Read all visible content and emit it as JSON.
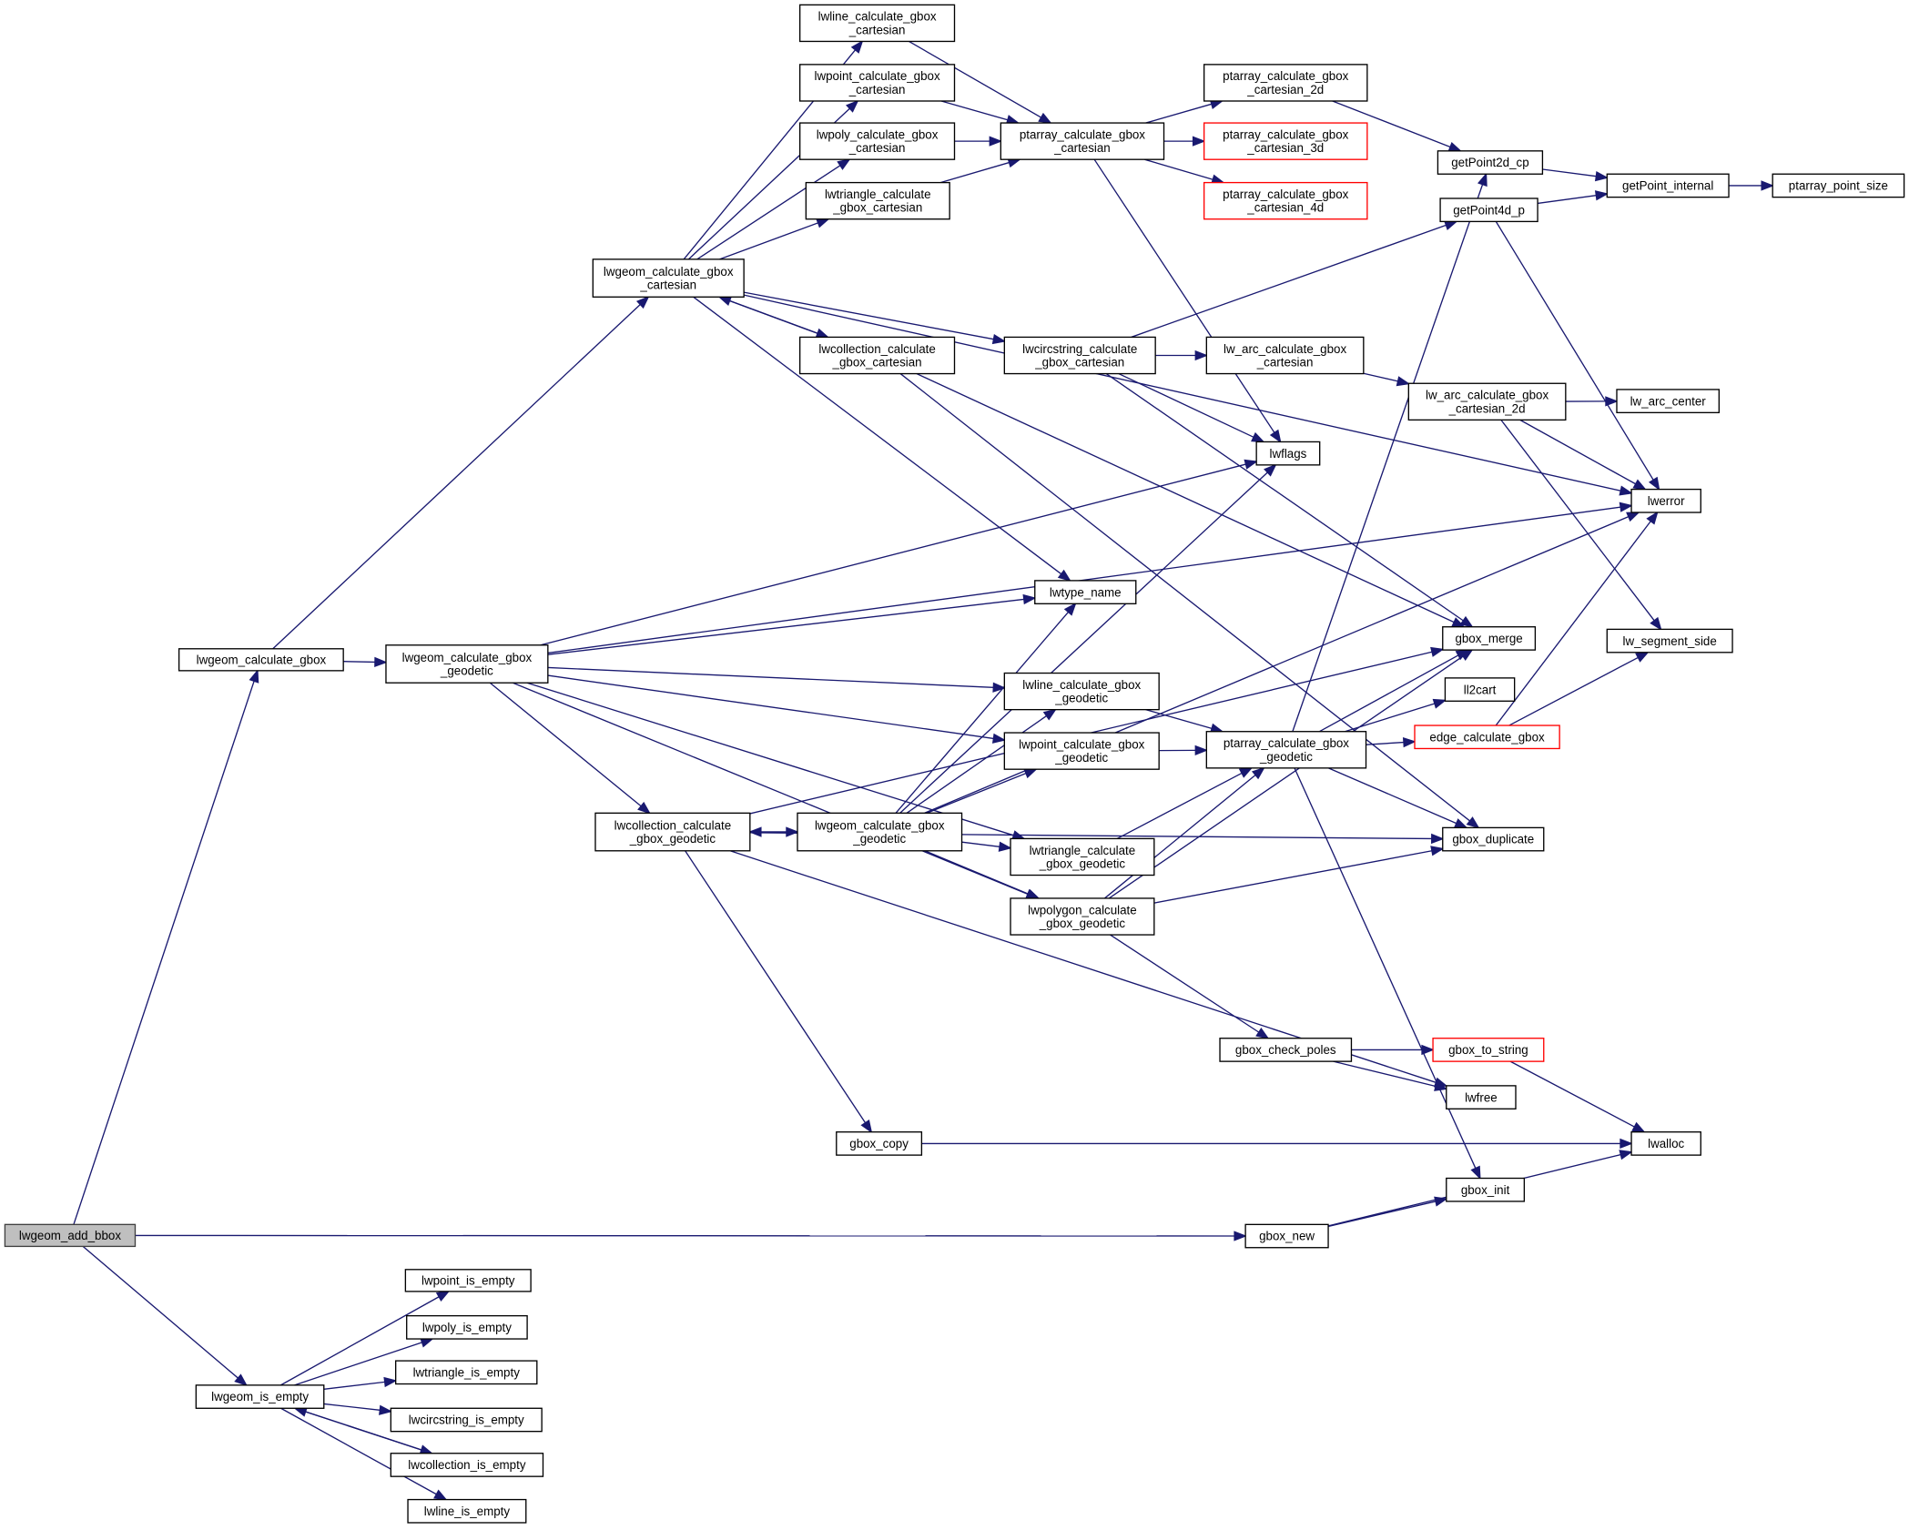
{
  "colors": {
    "edge": "#191970",
    "root_fill": "#bfbfbf",
    "missing_border": "#ff0000",
    "border": "#000000"
  },
  "nodes": [
    {
      "id": "add_bbox",
      "label": "lwgeom_add_bbox",
      "root": true
    },
    {
      "id": "calc_gbox",
      "label": "lwgeom_calculate_gbox"
    },
    {
      "id": "is_empty",
      "label": "lwgeom_is_empty"
    },
    {
      "id": "lwpoint_is_empty",
      "label": "lwpoint_is_empty"
    },
    {
      "id": "lwpoly_is_empty",
      "label": "lwpoly_is_empty"
    },
    {
      "id": "lwtriangle_is_empty",
      "label": "lwtriangle_is_empty"
    },
    {
      "id": "lwcircstring_is_empty",
      "label": "lwcircstring_is_empty"
    },
    {
      "id": "lwcollection_is_empty",
      "label": "lwcollection_is_empty"
    },
    {
      "id": "lwline_is_empty",
      "label": "lwline_is_empty"
    },
    {
      "id": "cart",
      "label": "lwgeom_calculate_gbox\n_cartesian"
    },
    {
      "id": "lwline_cart",
      "label": "lwline_calculate_gbox\n_cartesian"
    },
    {
      "id": "lwpoint_cart",
      "label": "lwpoint_calculate_gbox\n_cartesian"
    },
    {
      "id": "lwpoly_cart",
      "label": "lwpoly_calculate_gbox\n_cartesian"
    },
    {
      "id": "lwtriangle_cart",
      "label": "lwtriangle_calculate\n_gbox_cartesian"
    },
    {
      "id": "lwcollection_cart",
      "label": "lwcollection_calculate\n_gbox_cartesian"
    },
    {
      "id": "ptarray_cart",
      "label": "ptarray_calculate_gbox\n_cartesian"
    },
    {
      "id": "ptarray_2d",
      "label": "ptarray_calculate_gbox\n_cartesian_2d"
    },
    {
      "id": "ptarray_3d",
      "label": "ptarray_calculate_gbox\n_cartesian_3d",
      "red": true
    },
    {
      "id": "ptarray_4d",
      "label": "ptarray_calculate_gbox\n_cartesian_4d",
      "red": true
    },
    {
      "id": "getPoint2d_cp",
      "label": "getPoint2d_cp"
    },
    {
      "id": "getPoint4d_p",
      "label": "getPoint4d_p"
    },
    {
      "id": "getPoint_internal",
      "label": "getPoint_internal"
    },
    {
      "id": "ptarray_point_size",
      "label": "ptarray_point_size"
    },
    {
      "id": "lwcircstring_cart",
      "label": "lwcircstring_calculate\n_gbox_cartesian"
    },
    {
      "id": "lw_arc_cart",
      "label": "lw_arc_calculate_gbox\n_cartesian"
    },
    {
      "id": "lw_arc_2d",
      "label": "lw_arc_calculate_gbox\n_cartesian_2d"
    },
    {
      "id": "lw_arc_center",
      "label": "lw_arc_center"
    },
    {
      "id": "lwflags",
      "label": "lwflags"
    },
    {
      "id": "lwerror",
      "label": "lwerror"
    },
    {
      "id": "lwtype_name",
      "label": "lwtype_name"
    },
    {
      "id": "gbox_merge",
      "label": "gbox_merge"
    },
    {
      "id": "lw_segment_side",
      "label": "lw_segment_side"
    },
    {
      "id": "ll2cart",
      "label": "ll2cart"
    },
    {
      "id": "edge_calc",
      "label": "edge_calculate_gbox",
      "red": true
    },
    {
      "id": "geo",
      "label": "lwgeom_calculate_gbox\n_geodetic"
    },
    {
      "id": "lwline_geo",
      "label": "lwline_calculate_gbox\n_geodetic"
    },
    {
      "id": "lwpoint_geo",
      "label": "lwpoint_calculate_gbox\n_geodetic"
    },
    {
      "id": "ptarray_geo",
      "label": "ptarray_calculate_gbox\n_geodetic"
    },
    {
      "id": "lwcollection_geo",
      "label": "lwcollection_calculate\n_gbox_geodetic"
    },
    {
      "id": "geo2",
      "label": "lwgeom_calculate_gbox\n_geodetic"
    },
    {
      "id": "lwtriangle_geo",
      "label": "lwtriangle_calculate\n_gbox_geodetic"
    },
    {
      "id": "lwpolygon_geo",
      "label": "lwpolygon_calculate\n_gbox_geodetic"
    },
    {
      "id": "gbox_duplicate",
      "label": "gbox_duplicate"
    },
    {
      "id": "gbox_check_poles",
      "label": "gbox_check_poles"
    },
    {
      "id": "gbox_to_string",
      "label": "gbox_to_string",
      "red": true
    },
    {
      "id": "lwfree",
      "label": "lwfree"
    },
    {
      "id": "gbox_copy",
      "label": "gbox_copy"
    },
    {
      "id": "lwalloc",
      "label": "lwalloc"
    },
    {
      "id": "gbox_init",
      "label": "gbox_init"
    },
    {
      "id": "gbox_new",
      "label": "gbox_new"
    }
  ],
  "edges": [
    [
      "add_bbox",
      "calc_gbox"
    ],
    [
      "add_bbox",
      "gbox_new"
    ],
    [
      "add_bbox",
      "is_empty"
    ],
    [
      "is_empty",
      "lwpoint_is_empty"
    ],
    [
      "is_empty",
      "lwpoly_is_empty"
    ],
    [
      "is_empty",
      "lwtriangle_is_empty"
    ],
    [
      "is_empty",
      "lwcircstring_is_empty"
    ],
    [
      "is_empty",
      "lwcollection_is_empty"
    ],
    [
      "is_empty",
      "lwline_is_empty"
    ],
    [
      "lwcollection_is_empty",
      "is_empty"
    ],
    [
      "calc_gbox",
      "cart"
    ],
    [
      "calc_gbox",
      "geo"
    ],
    [
      "cart",
      "lwline_cart"
    ],
    [
      "cart",
      "lwpoint_cart"
    ],
    [
      "cart",
      "lwpoly_cart"
    ],
    [
      "cart",
      "lwtriangle_cart"
    ],
    [
      "cart",
      "lwcollection_cart"
    ],
    [
      "cart",
      "lwcircstring_cart"
    ],
    [
      "cart",
      "lwtype_name"
    ],
    [
      "cart",
      "lwerror"
    ],
    [
      "lwcollection_cart",
      "cart"
    ],
    [
      "lwcollection_cart",
      "gbox_merge"
    ],
    [
      "lwcollection_cart",
      "gbox_duplicate"
    ],
    [
      "lwline_cart",
      "ptarray_cart"
    ],
    [
      "lwpoint_cart",
      "ptarray_cart"
    ],
    [
      "lwpoly_cart",
      "ptarray_cart"
    ],
    [
      "lwtriangle_cart",
      "ptarray_cart"
    ],
    [
      "ptarray_cart",
      "ptarray_2d"
    ],
    [
      "ptarray_cart",
      "ptarray_3d"
    ],
    [
      "ptarray_cart",
      "ptarray_4d"
    ],
    [
      "ptarray_cart",
      "lwflags"
    ],
    [
      "ptarray_2d",
      "getPoint2d_cp"
    ],
    [
      "getPoint2d_cp",
      "getPoint_internal"
    ],
    [
      "getPoint4d_p",
      "getPoint_internal"
    ],
    [
      "getPoint4d_p",
      "lwerror"
    ],
    [
      "getPoint_internal",
      "ptarray_point_size"
    ],
    [
      "lwcircstring_cart",
      "getPoint4d_p"
    ],
    [
      "lwcircstring_cart",
      "lw_arc_cart"
    ],
    [
      "lwcircstring_cart",
      "lwflags"
    ],
    [
      "lwcircstring_cart",
      "gbox_merge"
    ],
    [
      "lw_arc_cart",
      "lw_arc_2d"
    ],
    [
      "lw_arc_2d",
      "lw_arc_center"
    ],
    [
      "lw_arc_2d",
      "lwerror"
    ],
    [
      "lw_arc_2d",
      "lw_segment_side"
    ],
    [
      "geo",
      "lwflags"
    ],
    [
      "geo",
      "lwerror"
    ],
    [
      "geo",
      "lwtype_name"
    ],
    [
      "geo",
      "lwline_geo"
    ],
    [
      "geo",
      "lwpoint_geo"
    ],
    [
      "geo",
      "lwcollection_geo"
    ],
    [
      "geo",
      "lwtriangle_geo"
    ],
    [
      "geo",
      "lwpolygon_geo"
    ],
    [
      "lwcollection_geo",
      "gbox_merge"
    ],
    [
      "lwcollection_geo",
      "geo2"
    ],
    [
      "lwcollection_geo",
      "gbox_duplicate"
    ],
    [
      "lwcollection_geo",
      "lwfree"
    ],
    [
      "lwcollection_geo",
      "gbox_copy"
    ],
    [
      "geo2",
      "lwcollection_geo"
    ],
    [
      "geo2",
      "lwtype_name"
    ],
    [
      "geo2",
      "lwline_geo"
    ],
    [
      "geo2",
      "lwpoint_geo"
    ],
    [
      "geo2",
      "lwtriangle_geo"
    ],
    [
      "geo2",
      "lwpolygon_geo"
    ],
    [
      "geo2",
      "lwflags"
    ],
    [
      "geo2",
      "lwerror"
    ],
    [
      "lwline_geo",
      "ptarray_geo"
    ],
    [
      "lwpoint_geo",
      "ptarray_geo"
    ],
    [
      "lwtriangle_geo",
      "ptarray_geo"
    ],
    [
      "lwpolygon_geo",
      "ptarray_geo"
    ],
    [
      "lwpolygon_geo",
      "gbox_merge"
    ],
    [
      "lwpolygon_geo",
      "gbox_duplicate"
    ],
    [
      "lwpolygon_geo",
      "gbox_check_poles"
    ],
    [
      "ptarray_geo",
      "getPoint2d_cp"
    ],
    [
      "ptarray_geo",
      "gbox_merge"
    ],
    [
      "ptarray_geo",
      "ll2cart"
    ],
    [
      "ptarray_geo",
      "edge_calc"
    ],
    [
      "ptarray_geo",
      "gbox_duplicate"
    ],
    [
      "ptarray_geo",
      "gbox_init"
    ],
    [
      "edge_calc",
      "lwerror"
    ],
    [
      "edge_calc",
      "lw_segment_side"
    ],
    [
      "gbox_check_poles",
      "gbox_to_string"
    ],
    [
      "gbox_check_poles",
      "lwfree"
    ],
    [
      "gbox_to_string",
      "lwalloc"
    ],
    [
      "gbox_copy",
      "lwalloc"
    ],
    [
      "gbox_new",
      "gbox_init"
    ],
    [
      "gbox_new",
      "lwalloc"
    ]
  ]
}
